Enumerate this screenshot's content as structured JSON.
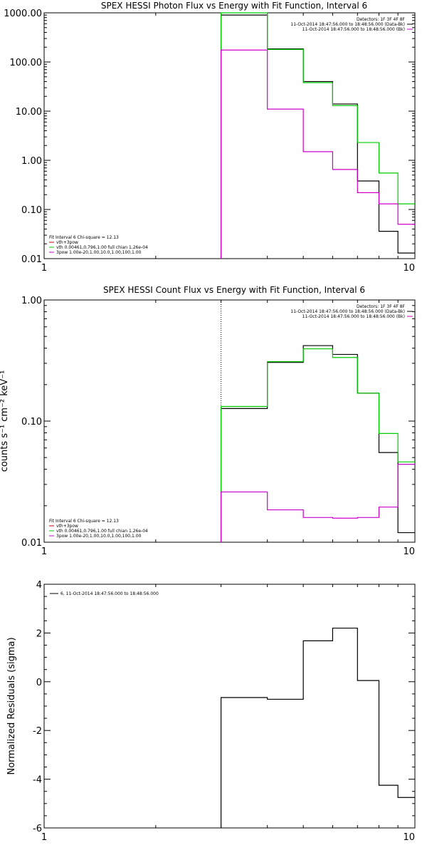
{
  "chart_data": [
    {
      "type": "line",
      "title": "SPEX HESSI Photon Flux vs Energy with Fit Function, Interval 6",
      "xlabel": "",
      "ylabel": "",
      "xscale": "log",
      "yscale": "log",
      "xlim": [
        1,
        10
      ],
      "ylim": [
        0.01,
        1000
      ],
      "x_ticks": [
        {
          "v": 1,
          "label": "1"
        },
        {
          "v": 10,
          "label": "10"
        }
      ],
      "y_ticks": [
        {
          "v": 0.01,
          "label": "0.01"
        },
        {
          "v": 0.1,
          "label": "0.10"
        },
        {
          "v": 1,
          "label": "1.00"
        },
        {
          "v": 10,
          "label": "10.00"
        },
        {
          "v": 100,
          "label": "100.00"
        },
        {
          "v": 1000,
          "label": "1000.00"
        }
      ],
      "edges": [
        3,
        4,
        5,
        6,
        7,
        8,
        9,
        10
      ],
      "series": [
        {
          "color": "#000000",
          "values": [
            900,
            185,
            40,
            14,
            0.38,
            0.036,
            0.013
          ]
        },
        {
          "color": "#00cc00",
          "values": [
            1000,
            180,
            38,
            13,
            2.3,
            0.55,
            0.13
          ]
        },
        {
          "color": "#cc00cc",
          "values": [
            175,
            11,
            1.5,
            0.65,
            0.22,
            0.13,
            0.05
          ]
        }
      ],
      "vline": {
        "x": 3,
        "color": "#00cc00",
        "style": "dotted"
      },
      "legend_top": [
        {
          "text": "Detectors: 1F 3F 4F 8F",
          "color": null
        },
        {
          "text": "11-Oct-2014 18:47:56.000 to 18:48:56.000 (Data-Bk)",
          "color": "#000000"
        },
        {
          "text": "11-Oct-2014 18:47:56.000 to 18:48:56.000 (Bk)",
          "color": "#cc00cc"
        }
      ],
      "legend_bottom": [
        {
          "text": "Fit Interval  6    Chi-square = 12.13",
          "color": null
        },
        {
          "text": "vth+3pow",
          "color": "#cc0000"
        },
        {
          "text": "vth 0.00461,0.796,1.00  full chian 1.26e-04",
          "color": "#00cc00"
        },
        {
          "text": "3pow 1.00e-20,1.00,10.0,1.00,100,1.00",
          "color": "#cc00cc"
        }
      ]
    },
    {
      "type": "line",
      "title": "SPEX HESSI Count Flux vs Energy with Fit Function, Interval 6",
      "xlabel": "",
      "ylabel": "counts s⁻¹ cm⁻² keV⁻¹",
      "xscale": "log",
      "yscale": "log",
      "xlim": [
        1,
        10
      ],
      "ylim": [
        0.01,
        1.0
      ],
      "x_ticks": [
        {
          "v": 1,
          "label": "1"
        },
        {
          "v": 10,
          "label": "10"
        }
      ],
      "y_ticks": [
        {
          "v": 0.01,
          "label": "0.01"
        },
        {
          "v": 0.1,
          "label": "0.10"
        },
        {
          "v": 1,
          "label": "1.00"
        }
      ],
      "edges": [
        3,
        4,
        5,
        6,
        7,
        8,
        9,
        10
      ],
      "series": [
        {
          "color": "#000000",
          "values": [
            0.127,
            0.305,
            0.42,
            0.355,
            0.17,
            0.055,
            0.012
          ]
        },
        {
          "color": "#00cc00",
          "values": [
            0.132,
            0.31,
            0.395,
            0.335,
            0.17,
            0.079,
            0.046
          ]
        },
        {
          "color": "#cc00cc",
          "values": [
            0.026,
            0.0185,
            0.016,
            0.0158,
            0.016,
            0.0195,
            0.044
          ]
        }
      ],
      "vline": {
        "x": 3,
        "color": "#000000",
        "style": "dotted"
      },
      "legend_top": [
        {
          "text": "Detectors: 1F 3F 4F 8F",
          "color": null
        },
        {
          "text": "11-Oct-2014 18:47:56.000 to 18:48:56.000 (Data-Bk)",
          "color": "#000000"
        },
        {
          "text": "11-Oct-2014 18:47:56.000 to 18:48:56.000 (Bk)",
          "color": "#cc00cc"
        }
      ],
      "legend_bottom": [
        {
          "text": "Fit Interval  6    Chi-square = 12.13",
          "color": null
        },
        {
          "text": "vth+3pow",
          "color": "#cc0000"
        },
        {
          "text": "vth 0.00461,0.796,1.00  full chian 1.26e-04",
          "color": "#00cc00"
        },
        {
          "text": "3pow 1.00e-20,1.00,10.0,1.00,100,1.00",
          "color": "#cc00cc"
        }
      ]
    },
    {
      "type": "line",
      "title": "",
      "xlabel": "",
      "ylabel": "Normalized Residuals (sigma)",
      "xscale": "log",
      "yscale": "linear",
      "xlim": [
        1,
        10
      ],
      "ylim": [
        -6,
        4
      ],
      "x_ticks": [
        {
          "v": 1,
          "label": "1"
        },
        {
          "v": 10,
          "label": "10"
        }
      ],
      "y_ticks": [
        {
          "v": -6,
          "label": "-6"
        },
        {
          "v": -4,
          "label": "-4"
        },
        {
          "v": -2,
          "label": "-2"
        },
        {
          "v": 0,
          "label": "0"
        },
        {
          "v": 2,
          "label": "2"
        },
        {
          "v": 4,
          "label": "4"
        }
      ],
      "edges": [
        3,
        4,
        5,
        6,
        7,
        8,
        9,
        10
      ],
      "series": [
        {
          "color": "#000000",
          "values": [
            -0.65,
            -0.72,
            1.68,
            2.2,
            0.05,
            -4.25,
            -4.75
          ]
        }
      ],
      "legend_top": [
        {
          "text": "6, 11-Oct-2014 18:47:56.000 to 18:48:56.000",
          "color": "#000000"
        }
      ]
    }
  ]
}
